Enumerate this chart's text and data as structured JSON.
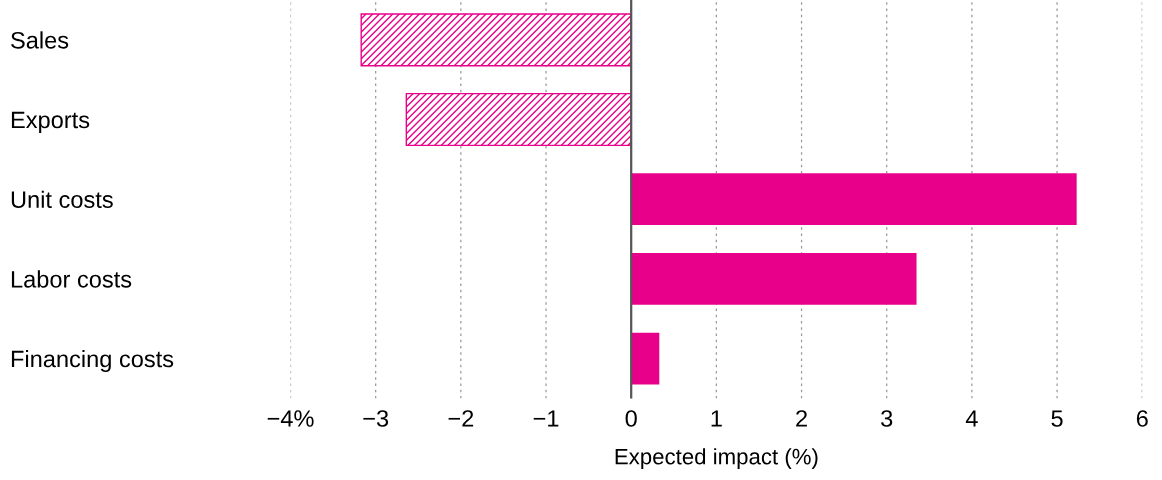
{
  "chart_data": {
    "type": "bar",
    "orientation": "horizontal",
    "xlabel": "Expected impact (%)",
    "categories": [
      "Sales",
      "Exports",
      "Unit costs",
      "Labor costs",
      "Financing costs"
    ],
    "values": [
      -3.17,
      -2.64,
      5.23,
      3.35,
      0.33
    ],
    "color": "#e8008a",
    "xlim": [
      -4,
      6
    ],
    "xticks": [
      {
        "value": -4,
        "label": "−4%"
      },
      {
        "value": -3,
        "label": "−3"
      },
      {
        "value": -2,
        "label": "−2"
      },
      {
        "value": -1,
        "label": "−1"
      },
      0,
      1,
      2,
      3,
      4,
      5,
      6
    ],
    "grid": "x",
    "ref_lines": [
      {
        "axis": "x",
        "value": 0,
        "color": "#555555"
      }
    ]
  }
}
